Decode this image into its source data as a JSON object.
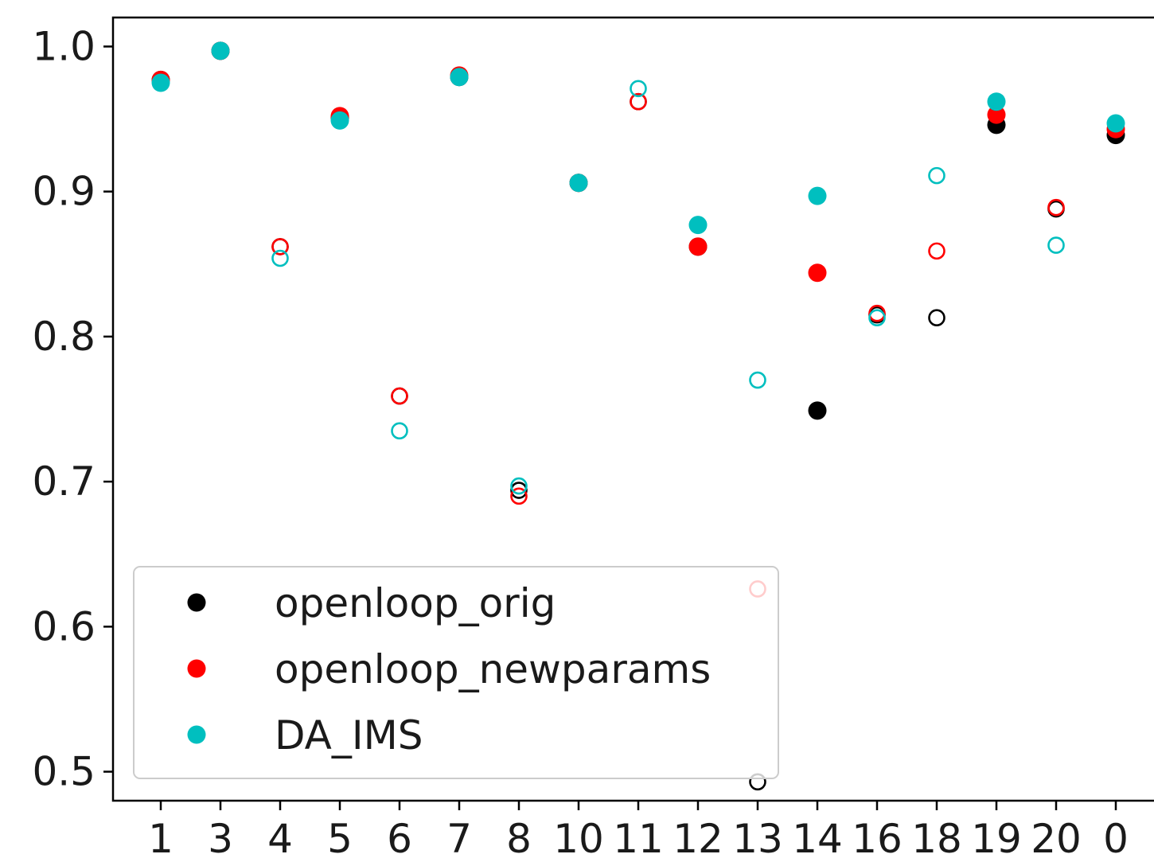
{
  "chart_data": {
    "type": "scatter",
    "title": "",
    "xlabel": "",
    "ylabel": "",
    "categories": [
      "1",
      "3",
      "4",
      "5",
      "6",
      "7",
      "8",
      "10",
      "11",
      "12",
      "13",
      "14",
      "16",
      "18",
      "19",
      "20",
      "0"
    ],
    "ylim": [
      0.48,
      1.02
    ],
    "yticks": [
      "0.5",
      "0.6",
      "0.7",
      "0.8",
      "0.9",
      "1.0"
    ],
    "grid": false,
    "legend_position": "lower-left",
    "marker_note": "filled and hollow circles; each category shows filled and/or hollow markers per series",
    "series": [
      {
        "name": "openloop_orig",
        "color": "#000000",
        "filled": [
          0.977,
          0.997,
          null,
          0.951,
          null,
          0.979,
          null,
          0.906,
          null,
          0.862,
          null,
          0.749,
          null,
          null,
          0.946,
          null,
          0.939
        ],
        "hollow": [
          0.977,
          0.997,
          0.862,
          0.951,
          0.759,
          0.979,
          0.694,
          0.906,
          0.962,
          0.862,
          0.493,
          null,
          0.815,
          0.813,
          0.946,
          0.888,
          0.939
        ]
      },
      {
        "name": "openloop_newparams",
        "color": "#ff0000",
        "filled": [
          0.977,
          0.997,
          null,
          0.952,
          null,
          0.98,
          null,
          0.906,
          null,
          0.862,
          null,
          0.844,
          null,
          null,
          0.953,
          null,
          0.943
        ],
        "hollow": [
          0.977,
          0.997,
          0.862,
          0.952,
          0.759,
          0.98,
          0.69,
          0.906,
          0.962,
          0.862,
          0.626,
          null,
          0.816,
          0.859,
          0.953,
          0.889,
          0.943
        ]
      },
      {
        "name": "DA_IMS",
        "color": "#00bfbf",
        "filled": [
          0.975,
          0.997,
          null,
          0.949,
          null,
          0.979,
          null,
          0.906,
          null,
          0.877,
          null,
          0.897,
          null,
          null,
          0.962,
          null,
          0.947
        ],
        "hollow": [
          0.975,
          0.997,
          0.854,
          0.949,
          0.735,
          0.979,
          0.697,
          0.906,
          0.971,
          0.877,
          0.77,
          null,
          0.813,
          0.911,
          0.962,
          0.863,
          0.947
        ]
      }
    ]
  }
}
